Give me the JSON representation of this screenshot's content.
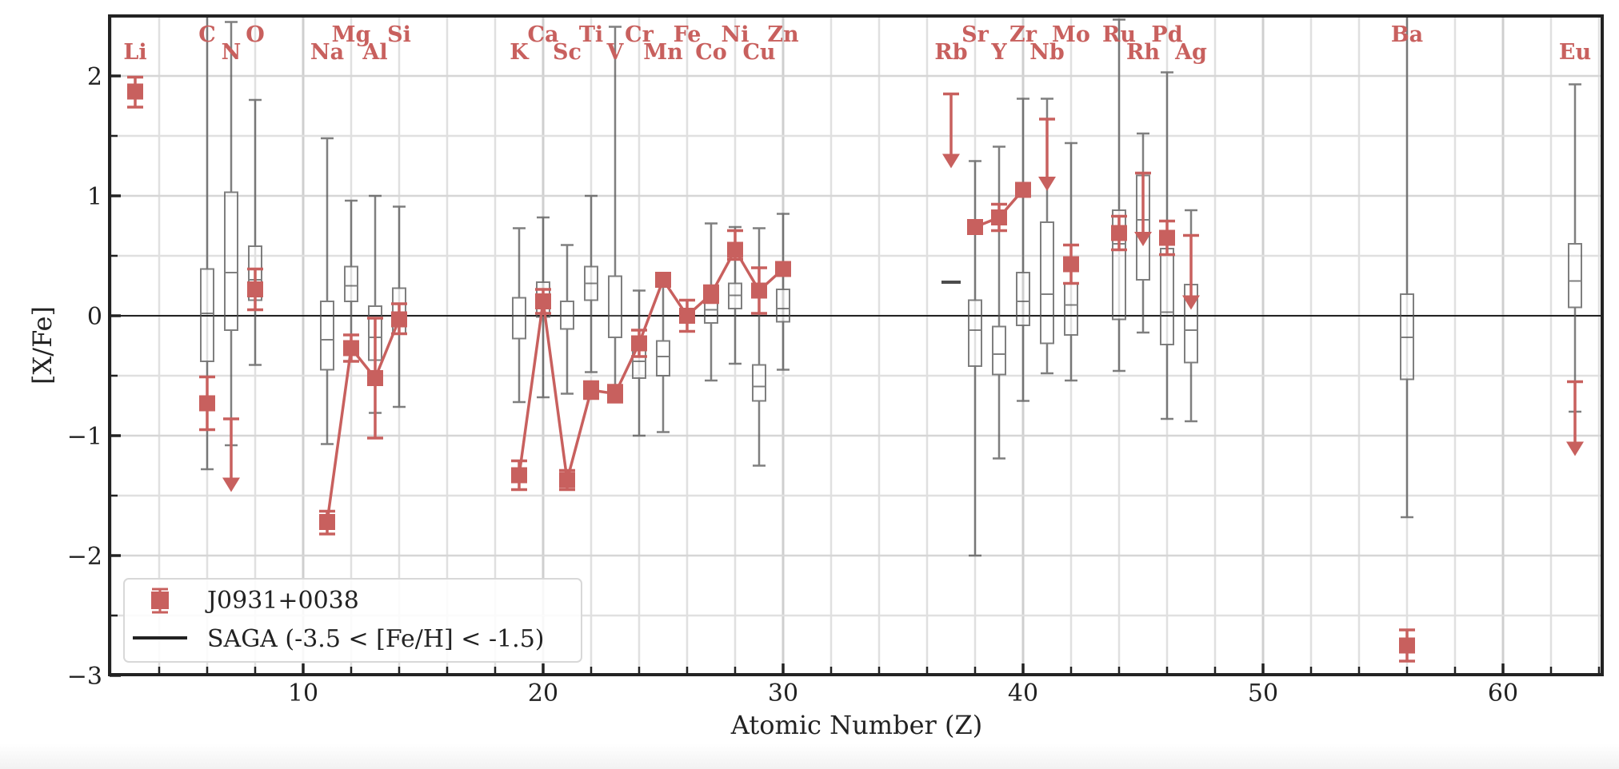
{
  "chart_data": {
    "type": "scatter",
    "title": "",
    "xlabel": "Atomic Number (Z)",
    "ylabel": "[X/Fe]",
    "xlim": [
      1.93,
      64.1
    ],
    "ylim": [
      -3,
      2.5
    ],
    "xticks": [
      10,
      20,
      30,
      40,
      50,
      60
    ],
    "yticks": [
      -3,
      -2,
      -1,
      0,
      1,
      2
    ],
    "ytick_labels": [
      "−3",
      "−2",
      "−1",
      "0",
      "1",
      "2"
    ],
    "grid": true,
    "zero_line": 0,
    "legend": {
      "position": "lower left",
      "entries": [
        {
          "label": "J0931+0038",
          "style": "red square with error bars"
        },
        {
          "label": "SAGA (-3.5 < [Fe/H] < -1.5)",
          "style": "black line"
        }
      ]
    },
    "colors": {
      "star": "#c8605e",
      "saga": "#555555",
      "grid": "#dddddd",
      "axis": "#222222"
    },
    "element_labels": [
      {
        "el": "Li",
        "Z": 3,
        "row": 2
      },
      {
        "el": "C",
        "Z": 6,
        "row": 1
      },
      {
        "el": "N",
        "Z": 7,
        "row": 2
      },
      {
        "el": "O",
        "Z": 8,
        "row": 1
      },
      {
        "el": "Na",
        "Z": 11,
        "row": 2
      },
      {
        "el": "Mg",
        "Z": 12,
        "row": 1
      },
      {
        "el": "Al",
        "Z": 13,
        "row": 2
      },
      {
        "el": "Si",
        "Z": 14,
        "row": 1
      },
      {
        "el": "K",
        "Z": 19,
        "row": 2
      },
      {
        "el": "Ca",
        "Z": 20,
        "row": 1
      },
      {
        "el": "Sc",
        "Z": 21,
        "row": 2
      },
      {
        "el": "Ti",
        "Z": 22,
        "row": 1
      },
      {
        "el": "V",
        "Z": 23,
        "row": 2
      },
      {
        "el": "Cr",
        "Z": 24,
        "row": 1
      },
      {
        "el": "Mn",
        "Z": 25,
        "row": 2
      },
      {
        "el": "Fe",
        "Z": 26,
        "row": 1
      },
      {
        "el": "Co",
        "Z": 27,
        "row": 2
      },
      {
        "el": "Ni",
        "Z": 28,
        "row": 1
      },
      {
        "el": "Cu",
        "Z": 29,
        "row": 2
      },
      {
        "el": "Zn",
        "Z": 30,
        "row": 1
      },
      {
        "el": "Rb",
        "Z": 37,
        "row": 2
      },
      {
        "el": "Sr",
        "Z": 38,
        "row": 1
      },
      {
        "el": "Y",
        "Z": 39,
        "row": 2
      },
      {
        "el": "Zr",
        "Z": 40,
        "row": 1
      },
      {
        "el": "Nb",
        "Z": 41,
        "row": 2
      },
      {
        "el": "Mo",
        "Z": 42,
        "row": 1
      },
      {
        "el": "Ru",
        "Z": 44,
        "row": 1
      },
      {
        "el": "Rh",
        "Z": 45,
        "row": 2
      },
      {
        "el": "Pd",
        "Z": 46,
        "row": 1
      },
      {
        "el": "Ag",
        "Z": 47,
        "row": 2
      },
      {
        "el": "Ba",
        "Z": 56,
        "row": 1
      },
      {
        "el": "Eu",
        "Z": 63,
        "row": 2
      }
    ],
    "star_name": "J0931+0038",
    "star_measurements": [
      {
        "el": "Li",
        "Z": 3,
        "value": 1.87,
        "err_lo": 0.13,
        "err_hi": 0.12
      },
      {
        "el": "C",
        "Z": 6,
        "value": -0.73,
        "err_lo": 0.22,
        "err_hi": 0.22
      },
      {
        "el": "O",
        "Z": 8,
        "value": 0.22,
        "err_lo": 0.17,
        "err_hi": 0.17
      },
      {
        "el": "Na",
        "Z": 11,
        "value": -1.72,
        "err_lo": 0.1,
        "err_hi": 0.09
      },
      {
        "el": "Mg",
        "Z": 12,
        "value": -0.27,
        "err_lo": 0.11,
        "err_hi": 0.11
      },
      {
        "el": "Al",
        "Z": 13,
        "value": -0.52,
        "err_lo": 0.5,
        "err_hi": 0.5
      },
      {
        "el": "Si",
        "Z": 14,
        "value": -0.03,
        "err_lo": 0.12,
        "err_hi": 0.13
      },
      {
        "el": "K",
        "Z": 19,
        "value": -1.33,
        "err_lo": 0.12,
        "err_hi": 0.12
      },
      {
        "el": "Ca",
        "Z": 20,
        "value": 0.12,
        "err_lo": 0.1,
        "err_hi": 0.1
      },
      {
        "el": "Sc",
        "Z": 21,
        "value": -1.37,
        "err_lo": 0.08,
        "err_hi": 0.08
      },
      {
        "el": "Ti",
        "Z": 22,
        "value": -0.62,
        "err_lo": 0.07,
        "err_hi": 0.07
      },
      {
        "el": "V",
        "Z": 23,
        "value": -0.65,
        "err_lo": 0.07,
        "err_hi": 0.07
      },
      {
        "el": "Cr",
        "Z": 24,
        "value": -0.23,
        "err_lo": 0.11,
        "err_hi": 0.11
      },
      {
        "el": "Mn",
        "Z": 25,
        "value": 0.3,
        "err_lo": 0.0,
        "err_hi": 0.0
      },
      {
        "el": "Fe",
        "Z": 26,
        "value": 0.0,
        "err_lo": 0.13,
        "err_hi": 0.13
      },
      {
        "el": "Co",
        "Z": 27,
        "value": 0.18,
        "err_lo": 0.07,
        "err_hi": 0.07
      },
      {
        "el": "Ni",
        "Z": 28,
        "value": 0.55,
        "err_lo": 0.08,
        "err_hi": 0.16
      },
      {
        "el": "Cu",
        "Z": 29,
        "value": 0.21,
        "err_lo": 0.19,
        "err_hi": 0.19
      },
      {
        "el": "Zn",
        "Z": 30,
        "value": 0.39,
        "err_lo": 0.0,
        "err_hi": 0.0
      },
      {
        "el": "Sr",
        "Z": 38,
        "value": 0.74,
        "err_lo": 0.0,
        "err_hi": 0.0
      },
      {
        "el": "Y",
        "Z": 39,
        "value": 0.82,
        "err_lo": 0.11,
        "err_hi": 0.11
      },
      {
        "el": "Zr",
        "Z": 40,
        "value": 1.05,
        "err_lo": 0.0,
        "err_hi": 0.0
      },
      {
        "el": "Mo",
        "Z": 42,
        "value": 0.43,
        "err_lo": 0.16,
        "err_hi": 0.16
      },
      {
        "el": "Ru",
        "Z": 44,
        "value": 0.69,
        "err_lo": 0.14,
        "err_hi": 0.14
      },
      {
        "el": "Pd",
        "Z": 46,
        "value": 0.65,
        "err_lo": 0.14,
        "err_hi": 0.14
      },
      {
        "el": "Ba",
        "Z": 56,
        "value": -2.75,
        "err_lo": 0.13,
        "err_hi": 0.13
      }
    ],
    "star_connected_groups": [
      [
        "Na",
        "Mg",
        "Al",
        "Si"
      ],
      [
        "K",
        "Ca",
        "Sc",
        "Ti",
        "V",
        "Cr",
        "Mn",
        "Fe",
        "Co",
        "Ni",
        "Cu",
        "Zn"
      ],
      [
        "Sr",
        "Y",
        "Zr"
      ]
    ],
    "star_upper_limits": [
      {
        "el": "N",
        "Z": 7,
        "value": -0.86,
        "arrow_to": -1.47
      },
      {
        "el": "Rb",
        "Z": 37,
        "value": 1.85,
        "arrow_to": 1.23
      },
      {
        "el": "Nb",
        "Z": 41,
        "value": 1.64,
        "arrow_to": 1.04
      },
      {
        "el": "Rh",
        "Z": 45,
        "value": 1.19,
        "arrow_to": 0.58
      },
      {
        "el": "Ag",
        "Z": 47,
        "value": 0.67,
        "arrow_to": 0.05
      },
      {
        "el": "Eu",
        "Z": 63,
        "value": -0.55,
        "arrow_to": -1.17
      }
    ],
    "saga_distribution": [
      {
        "el": "C",
        "Z": 6,
        "whisker_lo": -1.28,
        "q1": -0.38,
        "median": 0.02,
        "q3": 0.39,
        "whisker_hi": 2.5
      },
      {
        "el": "N",
        "Z": 7,
        "whisker_lo": -1.08,
        "q1": -0.12,
        "median": 0.36,
        "q3": 1.03,
        "whisker_hi": 2.45
      },
      {
        "el": "O",
        "Z": 8,
        "whisker_lo": -0.41,
        "q1": 0.13,
        "median": 0.3,
        "q3": 0.58,
        "whisker_hi": 1.8
      },
      {
        "el": "Na",
        "Z": 11,
        "whisker_lo": -1.07,
        "q1": -0.45,
        "median": -0.2,
        "q3": 0.12,
        "whisker_hi": 1.48
      },
      {
        "el": "Mg",
        "Z": 12,
        "whisker_lo": -0.38,
        "q1": 0.12,
        "median": 0.25,
        "q3": 0.41,
        "whisker_hi": 0.96
      },
      {
        "el": "Al",
        "Z": 13,
        "whisker_lo": -0.81,
        "q1": -0.37,
        "median": -0.18,
        "q3": 0.08,
        "whisker_hi": 1.0
      },
      {
        "el": "Si",
        "Z": 14,
        "whisker_lo": -0.76,
        "q1": -0.15,
        "median": 0.1,
        "q3": 0.23,
        "whisker_hi": 0.91
      },
      {
        "el": "K",
        "Z": 19,
        "whisker_lo": -0.72,
        "q1": -0.19,
        "median": 0.0,
        "q3": 0.15,
        "whisker_hi": 0.73
      },
      {
        "el": "Ca",
        "Z": 20,
        "whisker_lo": -0.68,
        "q1": -0.01,
        "median": 0.22,
        "q3": 0.28,
        "whisker_hi": 0.82
      },
      {
        "el": "Sc",
        "Z": 21,
        "whisker_lo": -0.65,
        "q1": -0.11,
        "median": 0.0,
        "q3": 0.12,
        "whisker_hi": 0.59
      },
      {
        "el": "Ti",
        "Z": 22,
        "whisker_lo": -0.47,
        "q1": 0.13,
        "median": 0.27,
        "q3": 0.41,
        "whisker_hi": 1.0
      },
      {
        "el": "V",
        "Z": 23,
        "whisker_lo": -0.7,
        "q1": -0.18,
        "median": 0.0,
        "q3": 0.33,
        "whisker_hi": 2.41
      },
      {
        "el": "Cr",
        "Z": 24,
        "whisker_lo": -1.0,
        "q1": -0.52,
        "median": -0.38,
        "q3": -0.28,
        "whisker_hi": 0.21
      },
      {
        "el": "Mn",
        "Z": 25,
        "whisker_lo": -0.97,
        "q1": -0.5,
        "median": -0.34,
        "q3": -0.21,
        "whisker_hi": 0.3
      },
      {
        "el": "Co",
        "Z": 27,
        "whisker_lo": -0.54,
        "q1": -0.06,
        "median": 0.05,
        "q3": 0.11,
        "whisker_hi": 0.77
      },
      {
        "el": "Ni",
        "Z": 28,
        "whisker_lo": -0.4,
        "q1": 0.06,
        "median": 0.17,
        "q3": 0.27,
        "whisker_hi": 0.74
      },
      {
        "el": "Cu",
        "Z": 29,
        "whisker_lo": -1.25,
        "q1": -0.71,
        "median": -0.59,
        "q3": -0.41,
        "whisker_hi": 0.73
      },
      {
        "el": "Zn",
        "Z": 30,
        "whisker_lo": -0.45,
        "q1": -0.05,
        "median": 0.06,
        "q3": 0.22,
        "whisker_hi": 0.85
      },
      {
        "el": "Rb",
        "Z": 37,
        "median": 0.28
      },
      {
        "el": "Sr",
        "Z": 38,
        "whisker_lo": -2.0,
        "q1": -0.42,
        "median": -0.12,
        "q3": 0.13,
        "whisker_hi": 1.29
      },
      {
        "el": "Y",
        "Z": 39,
        "whisker_lo": -1.19,
        "q1": -0.49,
        "median": -0.32,
        "q3": -0.09,
        "whisker_hi": 1.41
      },
      {
        "el": "Zr",
        "Z": 40,
        "whisker_lo": -0.71,
        "q1": -0.08,
        "median": 0.12,
        "q3": 0.36,
        "whisker_hi": 1.81
      },
      {
        "el": "Nb",
        "Z": 41,
        "whisker_lo": -0.48,
        "q1": -0.23,
        "median": 0.18,
        "q3": 0.78,
        "whisker_hi": 1.81
      },
      {
        "el": "Mo",
        "Z": 42,
        "whisker_lo": -0.54,
        "q1": -0.16,
        "median": 0.09,
        "q3": 0.27,
        "whisker_hi": 1.44
      },
      {
        "el": "Ru",
        "Z": 44,
        "whisker_lo": -0.46,
        "q1": -0.03,
        "median": 0.6,
        "q3": 0.88,
        "whisker_hi": 2.47
      },
      {
        "el": "Rh",
        "Z": 45,
        "whisker_lo": -0.14,
        "q1": 0.3,
        "median": 0.8,
        "q3": 1.17,
        "whisker_hi": 1.52
      },
      {
        "el": "Pd",
        "Z": 46,
        "whisker_lo": -0.86,
        "q1": -0.24,
        "median": 0.03,
        "q3": 0.56,
        "whisker_hi": 2.03
      },
      {
        "el": "Ag",
        "Z": 47,
        "whisker_lo": -0.88,
        "q1": -0.39,
        "median": -0.12,
        "q3": 0.26,
        "whisker_hi": 0.88
      },
      {
        "el": "Ba",
        "Z": 56,
        "whisker_lo": -1.68,
        "q1": -0.53,
        "median": -0.18,
        "q3": 0.18,
        "whisker_hi": 2.5
      },
      {
        "el": "Eu",
        "Z": 63,
        "whisker_lo": -0.8,
        "q1": 0.07,
        "median": 0.29,
        "q3": 0.6,
        "whisker_hi": 1.93
      }
    ]
  }
}
